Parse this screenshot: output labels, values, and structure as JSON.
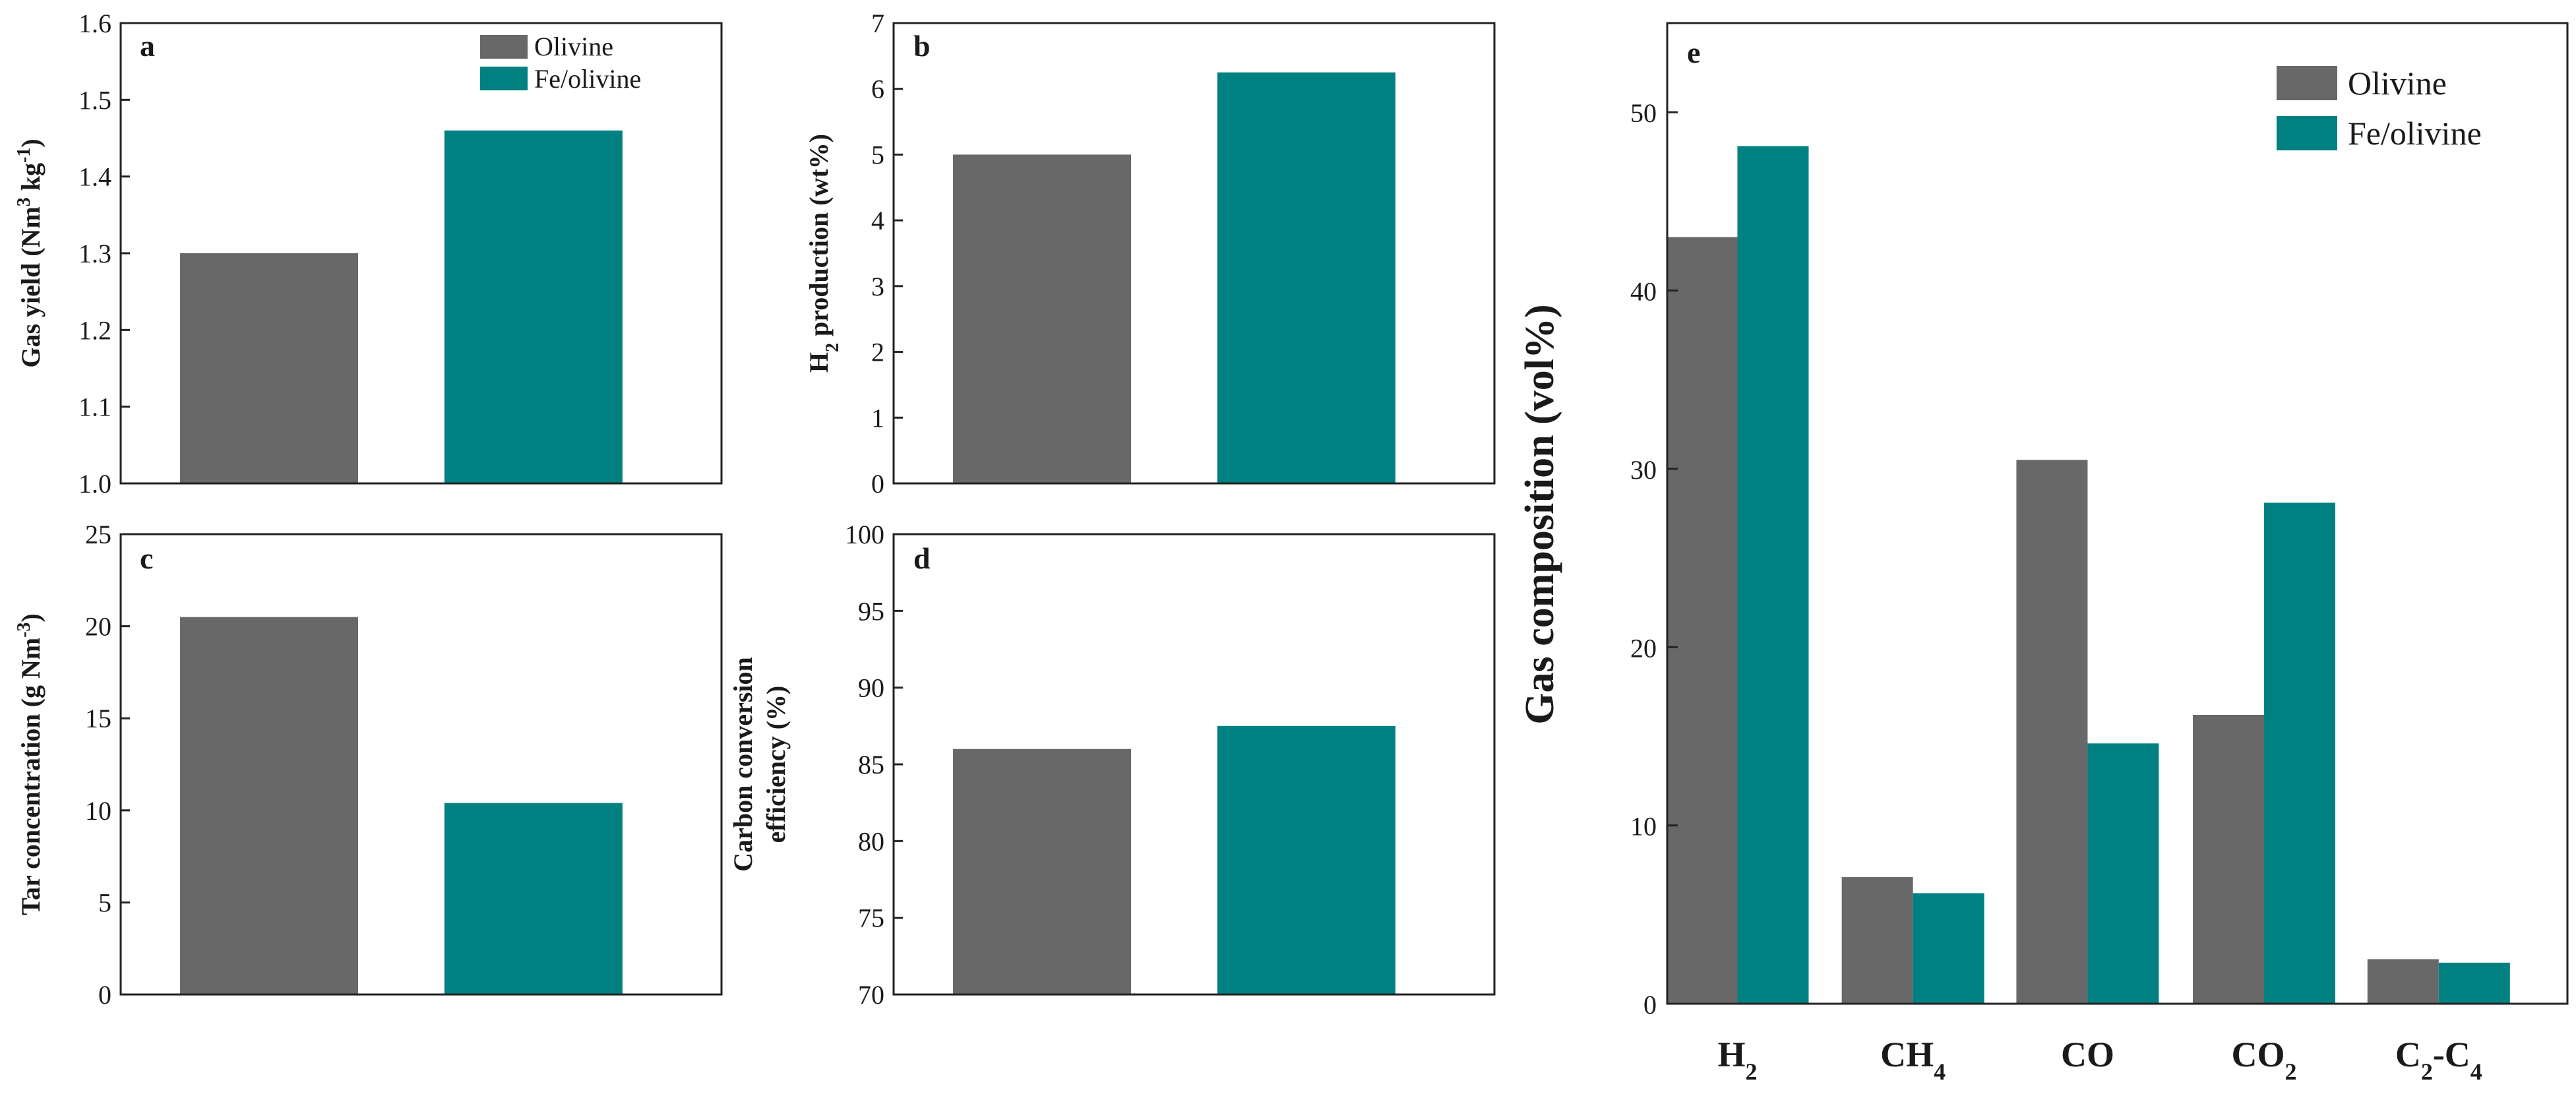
{
  "colors": {
    "olivine": "#686868",
    "fe_olivine": "#008080"
  },
  "chart_data": [
    {
      "id": "a",
      "type": "bar",
      "panel_label": "a",
      "ylabel": "Gas yield (Nm",
      "ylabel_sup1": "3",
      "ylabel_mid": " kg",
      "ylabel_sup2": "-1",
      "ylabel_end": ")",
      "ylim": [
        1.0,
        1.6
      ],
      "yticks": [
        "1.0",
        "1.1",
        "1.2",
        "1.3",
        "1.4",
        "1.5",
        "1.6"
      ],
      "categories": [
        "Olivine",
        "Fe/olivine"
      ],
      "values": [
        1.3,
        1.46
      ],
      "legend": [
        "Olivine",
        "Fe/olivine"
      ]
    },
    {
      "id": "b",
      "type": "bar",
      "panel_label": "b",
      "ylabel": "H",
      "ylabel_sub": "2",
      "ylabel_end": " production (wt%)",
      "ylim": [
        0,
        7
      ],
      "yticks": [
        "0",
        "1",
        "2",
        "3",
        "4",
        "5",
        "6",
        "7"
      ],
      "categories": [
        "Olivine",
        "Fe/olivine"
      ],
      "values": [
        5.0,
        6.25
      ]
    },
    {
      "id": "c",
      "type": "bar",
      "panel_label": "c",
      "ylabel": "Tar concentration (g Nm",
      "ylabel_sup1": "-3",
      "ylabel_end": ")",
      "ylim": [
        0,
        25
      ],
      "yticks": [
        "0",
        "5",
        "10",
        "15",
        "20",
        "25"
      ],
      "categories": [
        "Olivine",
        "Fe/olivine"
      ],
      "values": [
        20.5,
        10.4
      ]
    },
    {
      "id": "d",
      "type": "bar",
      "panel_label": "d",
      "ylabel_line1": "Carbon conversion",
      "ylabel_line2": "efficiency (%)",
      "ylim": [
        70,
        100
      ],
      "yticks": [
        "70",
        "75",
        "80",
        "85",
        "90",
        "95",
        "100"
      ],
      "categories": [
        "Olivine",
        "Fe/olivine"
      ],
      "values": [
        86.0,
        87.5
      ]
    },
    {
      "id": "e",
      "type": "bar",
      "panel_label": "e",
      "ylabel": "Gas composition (vol%)",
      "ylim": [
        0,
        55
      ],
      "yticks": [
        "0",
        "10",
        "20",
        "30",
        "40",
        "50"
      ],
      "categories": [
        {
          "base": "H",
          "sub": "2",
          "rest": ""
        },
        {
          "base": "CH",
          "sub": "4",
          "rest": ""
        },
        {
          "base": "CO",
          "sub": "",
          "rest": ""
        },
        {
          "base": "CO",
          "sub": "2",
          "rest": ""
        },
        {
          "base": "C",
          "sub": "2",
          "rest": "-C",
          "sub2": "4"
        }
      ],
      "series": [
        {
          "name": "Olivine",
          "values": [
            43.0,
            7.1,
            30.5,
            16.2,
            2.5
          ]
        },
        {
          "name": "Fe/olivine",
          "values": [
            48.1,
            6.2,
            14.6,
            28.1,
            2.3
          ]
        }
      ],
      "legend": [
        "Olivine",
        "Fe/olivine"
      ]
    }
  ]
}
